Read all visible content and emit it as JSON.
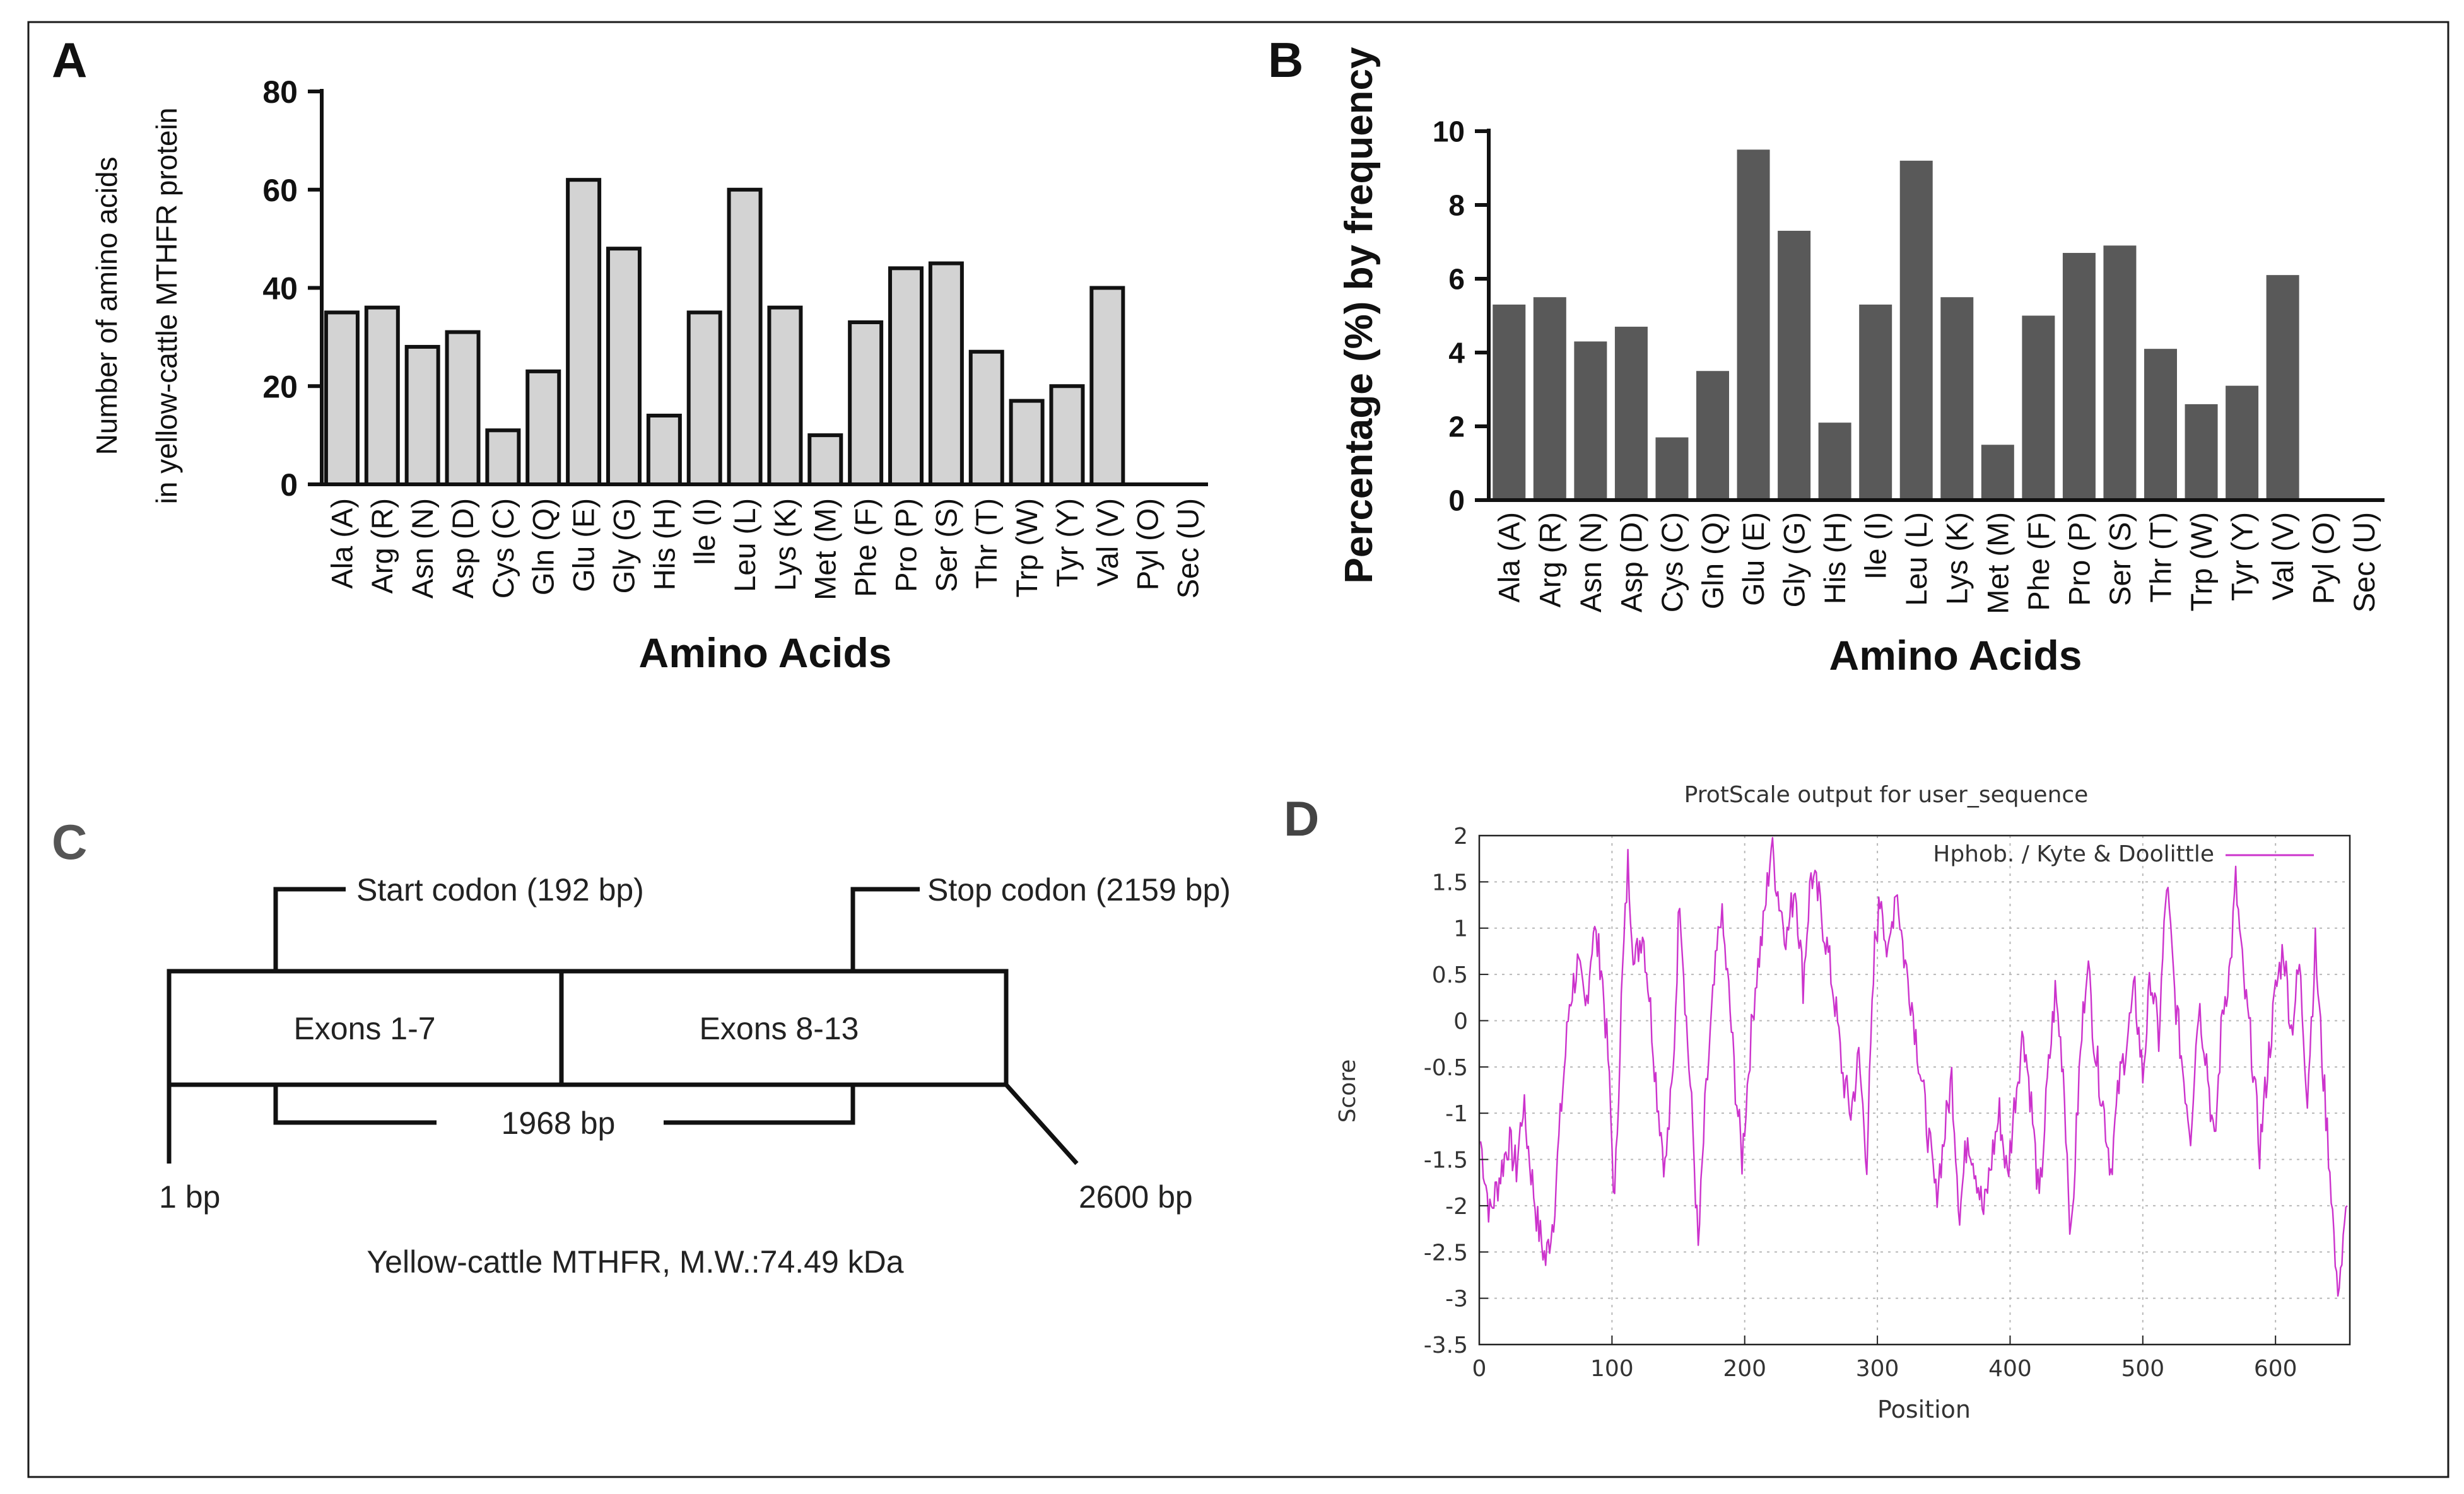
{
  "panels": {
    "A": {
      "letter": "A"
    },
    "B": {
      "letter": "B"
    },
    "C": {
      "letter": "C"
    },
    "D": {
      "letter": "D"
    }
  },
  "gene_map": {
    "start_codon": "Start codon (192 bp)",
    "stop_codon": "Stop codon (2159 bp)",
    "exons_left": "Exons 1-7",
    "exons_right": "Exons 8-13",
    "cds_length": "1968 bp",
    "left_end": "1 bp",
    "right_end": "2600 bp",
    "caption": "Yellow-cattle MTHFR, M.W.:74.49 kDa"
  },
  "colors": {
    "bar_A": "#d3d3d3",
    "bar_B": "#595959",
    "line_D": "#cc33cc",
    "frame": "#000000",
    "grid": "#b8b8b8"
  },
  "chart_data": [
    {
      "id": "A",
      "type": "bar",
      "title": "",
      "xlabel": "Amino Acids",
      "ylabel_line1": "Number of amino acids",
      "ylabel_line2": "in yellow-cattle MTHFR protein",
      "ylim": [
        0,
        80
      ],
      "yticks": [
        "0",
        "20",
        "40",
        "60",
        "80"
      ],
      "categories": [
        "Ala (A)",
        "Arg (R)",
        "Asn (N)",
        "Asp (D)",
        "Cys (C)",
        "Gln (Q)",
        "Glu (E)",
        "Gly (G)",
        "His (H)",
        "Ile (I)",
        "Leu (L)",
        "Lys (K)",
        "Met (M)",
        "Phe (F)",
        "Pro (P)",
        "Ser (S)",
        "Thr (T)",
        "Trp (W)",
        "Tyr (Y)",
        "Val (V)",
        "Pyl (O)",
        "Sec (U)"
      ],
      "values": [
        35,
        36,
        28,
        31,
        11,
        23,
        62,
        48,
        14,
        35,
        60,
        36,
        10,
        33,
        44,
        45,
        27,
        17,
        20,
        40,
        0,
        0
      ]
    },
    {
      "id": "B",
      "type": "bar",
      "title": "",
      "xlabel": "Amino Acids",
      "ylabel": "Percentage (%) by frequency",
      "ylim": [
        0,
        10
      ],
      "yticks": [
        "0",
        "2",
        "4",
        "6",
        "8",
        "10"
      ],
      "categories": [
        "Ala (A)",
        "Arg (R)",
        "Asn (N)",
        "Asp (D)",
        "Cys (C)",
        "Gln (Q)",
        "Glu (E)",
        "Gly (G)",
        "His (H)",
        "Ile (I)",
        "Leu (L)",
        "Lys (K)",
        "Met (M)",
        "Phe (F)",
        "Pro (P)",
        "Ser (S)",
        "Thr (T)",
        "Trp (W)",
        "Tyr (Y)",
        "Val (V)",
        "Pyl (O)",
        "Sec (U)"
      ],
      "values": [
        5.3,
        5.5,
        4.3,
        4.7,
        1.7,
        3.5,
        9.5,
        7.3,
        2.1,
        5.3,
        9.2,
        5.5,
        1.5,
        5.0,
        6.7,
        6.9,
        4.1,
        2.6,
        3.1,
        6.1,
        0,
        0
      ]
    },
    {
      "id": "D",
      "type": "line",
      "title": "ProtScale output for user_sequence",
      "xlabel": "Position",
      "ylabel": "Score",
      "legend": "Hphob. / Kyte & Doolittle",
      "legend_position": "top-right",
      "grid": true,
      "xlim": [
        0,
        656
      ],
      "ylim": [
        -3.5,
        2
      ],
      "xticks": [
        "0",
        "100",
        "200",
        "300",
        "400",
        "500",
        "600"
      ],
      "yticks": [
        "2",
        "1.5",
        "1",
        "0.5",
        "0",
        "-0.5",
        "-1",
        "-1.5",
        "-2",
        "-2.5",
        "-3",
        "-3.5"
      ],
      "series": [
        {
          "name": "Hphob. / Kyte & Doolittle",
          "points": [
            [
              1,
              -1.3
            ],
            [
              8,
              -2.1
            ],
            [
              15,
              -1.7
            ],
            [
              22,
              -1.3
            ],
            [
              28,
              -1.6
            ],
            [
              33,
              -0.9
            ],
            [
              38,
              -1.5
            ],
            [
              44,
              -2.2
            ],
            [
              50,
              -2.6
            ],
            [
              56,
              -2.1
            ],
            [
              62,
              -0.9
            ],
            [
              68,
              0.2
            ],
            [
              74,
              0.6
            ],
            [
              80,
              0.1
            ],
            [
              86,
              1.0
            ],
            [
              92,
              0.6
            ],
            [
              97,
              -0.4
            ],
            [
              102,
              -2.0
            ],
            [
              107,
              0.2
            ],
            [
              112,
              1.7
            ],
            [
              117,
              0.6
            ],
            [
              123,
              1.0
            ],
            [
              128,
              0.3
            ],
            [
              134,
              -0.8
            ],
            [
              140,
              -1.6
            ],
            [
              146,
              -0.6
            ],
            [
              151,
              1.4
            ],
            [
              156,
              0.0
            ],
            [
              161,
              -1.2
            ],
            [
              165,
              -2.5
            ],
            [
              170,
              -1.0
            ],
            [
              176,
              0.2
            ],
            [
              182,
              1.2
            ],
            [
              188,
              0.3
            ],
            [
              193,
              -0.7
            ],
            [
              198,
              -1.5
            ],
            [
              203,
              -0.5
            ],
            [
              208,
              0.4
            ],
            [
              214,
              1.0
            ],
            [
              220,
              1.9
            ],
            [
              226,
              1.3
            ],
            [
              232,
              0.9
            ],
            [
              238,
              1.5
            ],
            [
              244,
              0.4
            ],
            [
              250,
              1.6
            ],
            [
              256,
              1.3
            ],
            [
              262,
              0.8
            ],
            [
              268,
              0.2
            ],
            [
              274,
              -0.6
            ],
            [
              280,
              -1.0
            ],
            [
              286,
              -0.4
            ],
            [
              292,
              -1.5
            ],
            [
              298,
              0.8
            ],
            [
              303,
              1.4
            ],
            [
              308,
              0.6
            ],
            [
              314,
              1.5
            ],
            [
              320,
              0.7
            ],
            [
              326,
              0.2
            ],
            [
              332,
              -0.5
            ],
            [
              338,
              -1.2
            ],
            [
              344,
              -1.9
            ],
            [
              350,
              -1.3
            ],
            [
              356,
              -0.6
            ],
            [
              362,
              -2.1
            ],
            [
              368,
              -1.2
            ],
            [
              374,
              -1.6
            ],
            [
              380,
              -2.1
            ],
            [
              386,
              -1.5
            ],
            [
              392,
              -1.0
            ],
            [
              398,
              -1.7
            ],
            [
              404,
              -0.8
            ],
            [
              410,
              -0.1
            ],
            [
              416,
              -0.9
            ],
            [
              422,
              -2.0
            ],
            [
              428,
              -0.7
            ],
            [
              434,
              0.3
            ],
            [
              440,
              -0.5
            ],
            [
              446,
              -2.4
            ],
            [
              452,
              -0.6
            ],
            [
              458,
              0.7
            ],
            [
              464,
              -0.3
            ],
            [
              470,
              -0.9
            ],
            [
              476,
              -1.6
            ],
            [
              482,
              -0.7
            ],
            [
              488,
              -0.2
            ],
            [
              494,
              0.3
            ],
            [
              500,
              -0.6
            ],
            [
              506,
              0.5
            ],
            [
              512,
              -0.2
            ],
            [
              518,
              1.5
            ],
            [
              524,
              0.3
            ],
            [
              530,
              -0.5
            ],
            [
              536,
              -1.2
            ],
            [
              542,
              0.2
            ],
            [
              548,
              -0.4
            ],
            [
              554,
              -1.4
            ],
            [
              560,
              0.1
            ],
            [
              566,
              0.6
            ],
            [
              570,
              1.5
            ],
            [
              576,
              0.4
            ],
            [
              582,
              -0.3
            ],
            [
              588,
              -1.4
            ],
            [
              594,
              -0.5
            ],
            [
              600,
              0.3
            ],
            [
              606,
              0.8
            ],
            [
              612,
              -0.1
            ],
            [
              618,
              0.6
            ],
            [
              624,
              -0.8
            ],
            [
              630,
              0.8
            ],
            [
              636,
              -0.6
            ],
            [
              642,
              -1.8
            ],
            [
              646,
              -2.9
            ],
            [
              650,
              -2.6
            ],
            [
              654,
              -2.0
            ]
          ]
        }
      ]
    }
  ]
}
